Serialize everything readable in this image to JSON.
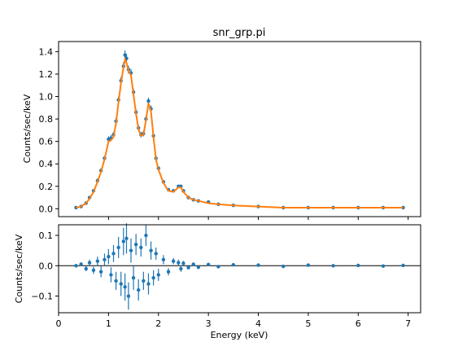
{
  "chart_data": [
    {
      "type": "scatter",
      "panel": "data-and-model",
      "title": "snr_grp.pi",
      "xlabel": "",
      "ylabel": "Counts/sec/keV",
      "xlim": [
        0,
        7.25
      ],
      "ylim": [
        -0.07,
        1.49
      ],
      "xticks": [
        1,
        2,
        3,
        4,
        5,
        6,
        7
      ],
      "xticklabels": [
        "",
        "",
        "",
        "",
        "",
        "",
        ""
      ],
      "yticks": [
        0.0,
        0.2,
        0.4,
        0.6,
        0.8,
        1.0,
        1.2,
        1.4
      ],
      "yticklabels": [
        "0.0",
        "0.2",
        "0.4",
        "0.6",
        "0.8",
        "1.0",
        "1.2",
        "1.4"
      ],
      "grid": false,
      "series": [
        {
          "kind": "data-with-errorbars",
          "color": "#1f77b4",
          "x": [
            0.35,
            0.45,
            0.55,
            0.62,
            0.7,
            0.78,
            0.85,
            0.92,
            1.0,
            1.05,
            1.1,
            1.15,
            1.2,
            1.25,
            1.3,
            1.33,
            1.36,
            1.4,
            1.45,
            1.5,
            1.55,
            1.6,
            1.65,
            1.7,
            1.75,
            1.8,
            1.85,
            1.9,
            1.95,
            2.0,
            2.1,
            2.2,
            2.3,
            2.4,
            2.45,
            2.5,
            2.6,
            2.7,
            2.8,
            3.0,
            3.2,
            3.5,
            4.0,
            4.5,
            5.0,
            5.5,
            6.0,
            6.5,
            6.9
          ],
          "y": [
            0.01,
            0.02,
            0.05,
            0.1,
            0.16,
            0.25,
            0.34,
            0.45,
            0.62,
            0.63,
            0.66,
            0.78,
            0.97,
            1.14,
            1.27,
            1.37,
            1.34,
            1.24,
            1.21,
            1.04,
            0.86,
            0.72,
            0.66,
            0.67,
            0.8,
            0.96,
            0.89,
            0.65,
            0.45,
            0.36,
            0.24,
            0.17,
            0.16,
            0.2,
            0.2,
            0.16,
            0.1,
            0.08,
            0.07,
            0.06,
            0.04,
            0.03,
            0.02,
            0.01,
            0.01,
            0.01,
            0.01,
            0.01,
            0.01
          ],
          "yerr": [
            0.01,
            0.01,
            0.01,
            0.015,
            0.015,
            0.02,
            0.02,
            0.02,
            0.025,
            0.025,
            0.025,
            0.03,
            0.03,
            0.035,
            0.035,
            0.04,
            0.04,
            0.035,
            0.035,
            0.03,
            0.03,
            0.025,
            0.025,
            0.025,
            0.03,
            0.03,
            0.03,
            0.025,
            0.02,
            0.02,
            0.015,
            0.015,
            0.015,
            0.015,
            0.015,
            0.015,
            0.01,
            0.01,
            0.01,
            0.01,
            0.008,
            0.006,
            0.005,
            0.005,
            0.004,
            0.004,
            0.004,
            0.004,
            0.004
          ]
        },
        {
          "kind": "model-line",
          "color": "#ff7f0e",
          "x": [
            0.35,
            0.45,
            0.55,
            0.62,
            0.7,
            0.78,
            0.85,
            0.92,
            1.0,
            1.05,
            1.1,
            1.15,
            1.2,
            1.25,
            1.3,
            1.33,
            1.36,
            1.4,
            1.45,
            1.5,
            1.55,
            1.6,
            1.65,
            1.7,
            1.75,
            1.8,
            1.85,
            1.9,
            1.95,
            2.0,
            2.1,
            2.2,
            2.3,
            2.4,
            2.45,
            2.5,
            2.6,
            2.7,
            2.8,
            3.0,
            3.2,
            3.5,
            4.0,
            4.5,
            5.0,
            5.5,
            6.0,
            6.5,
            6.9
          ],
          "y": [
            0.01,
            0.02,
            0.05,
            0.09,
            0.15,
            0.24,
            0.33,
            0.44,
            0.6,
            0.61,
            0.64,
            0.76,
            0.95,
            1.12,
            1.26,
            1.33,
            1.3,
            1.23,
            1.19,
            1.02,
            0.85,
            0.71,
            0.65,
            0.66,
            0.79,
            0.94,
            0.87,
            0.64,
            0.44,
            0.35,
            0.23,
            0.16,
            0.15,
            0.19,
            0.19,
            0.15,
            0.1,
            0.08,
            0.07,
            0.05,
            0.04,
            0.03,
            0.02,
            0.01,
            0.01,
            0.01,
            0.01,
            0.01,
            0.01
          ]
        }
      ]
    },
    {
      "type": "scatter",
      "panel": "residuals",
      "title": "",
      "xlabel": "Energy (keV)",
      "ylabel": "Counts/sec/keV",
      "xlim": [
        0,
        7.25
      ],
      "ylim": [
        -0.155,
        0.135
      ],
      "xticks": [
        0,
        1,
        2,
        3,
        4,
        5,
        6,
        7
      ],
      "xticklabels": [
        "0",
        "1",
        "2",
        "3",
        "4",
        "5",
        "6",
        "7"
      ],
      "yticks": [
        0.1,
        0.0,
        -0.1
      ],
      "yticklabels": [
        "0.1",
        "0.0",
        "−0.1"
      ],
      "grid": false,
      "zero_line": true,
      "series": [
        {
          "kind": "residuals-with-errorbars",
          "color": "#1f77b4",
          "x": [
            0.35,
            0.45,
            0.55,
            0.62,
            0.7,
            0.78,
            0.85,
            0.92,
            1.0,
            1.05,
            1.1,
            1.15,
            1.2,
            1.25,
            1.3,
            1.33,
            1.36,
            1.4,
            1.45,
            1.5,
            1.55,
            1.6,
            1.65,
            1.7,
            1.75,
            1.8,
            1.85,
            1.9,
            1.95,
            2.0,
            2.1,
            2.2,
            2.3,
            2.4,
            2.45,
            2.5,
            2.6,
            2.7,
            2.8,
            3.0,
            3.2,
            3.5,
            4.0,
            4.5,
            5.0,
            5.5,
            6.0,
            6.5,
            6.9
          ],
          "y": [
            0.0,
            0.005,
            -0.01,
            0.01,
            -0.015,
            0.015,
            -0.02,
            0.02,
            0.03,
            -0.03,
            0.04,
            -0.05,
            0.06,
            -0.06,
            0.08,
            -0.07,
            0.09,
            -0.1,
            0.05,
            -0.04,
            0.07,
            -0.08,
            0.06,
            -0.05,
            0.1,
            -0.06,
            0.05,
            -0.04,
            0.04,
            -0.03,
            0.02,
            -0.02,
            0.015,
            0.01,
            -0.01,
            0.008,
            -0.006,
            0.005,
            -0.005,
            0.004,
            -0.003,
            0.003,
            0.002,
            -0.002,
            0.002,
            0.0,
            0.001,
            -0.001,
            0.001
          ],
          "yerr": [
            0.005,
            0.006,
            0.008,
            0.01,
            0.012,
            0.015,
            0.018,
            0.02,
            0.025,
            0.025,
            0.028,
            0.03,
            0.035,
            0.04,
            0.045,
            0.045,
            0.05,
            0.045,
            0.04,
            0.04,
            0.035,
            0.035,
            0.03,
            0.03,
            0.035,
            0.035,
            0.03,
            0.025,
            0.02,
            0.02,
            0.015,
            0.012,
            0.01,
            0.01,
            0.01,
            0.008,
            0.006,
            0.005,
            0.005,
            0.004,
            0.004,
            0.003,
            0.003,
            0.003,
            0.003,
            0.003,
            0.003,
            0.003,
            0.003
          ]
        }
      ]
    }
  ]
}
